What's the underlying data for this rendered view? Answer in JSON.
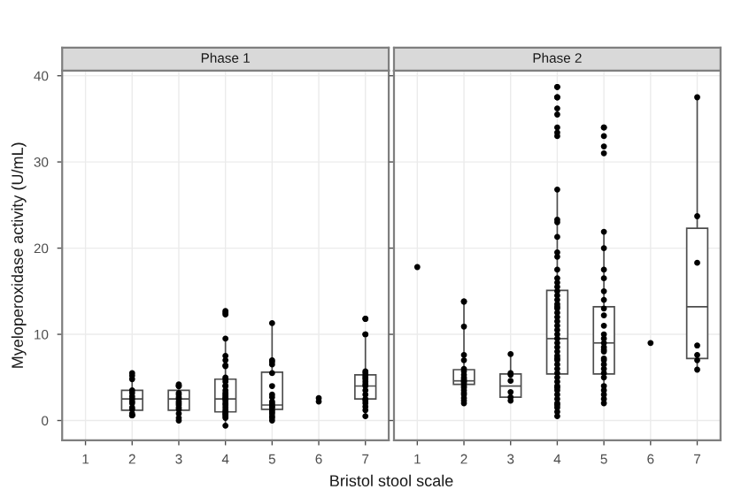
{
  "chart_data": [
    {
      "type": "box",
      "title": "Phase 1",
      "xlabel": "Bristol stool scale",
      "ylabel": "Myeloperoxidase activity (U/mL)",
      "categories": [
        "1",
        "2",
        "3",
        "4",
        "5",
        "6",
        "7"
      ],
      "boxes": [
        null,
        {
          "low": 0.5,
          "q1": 1.2,
          "median": 2.5,
          "q3": 3.5,
          "high": 5.5
        },
        {
          "low": 0.0,
          "q1": 1.2,
          "median": 2.5,
          "q3": 3.5,
          "high": 4.2
        },
        {
          "low": -0.6,
          "q1": 1.0,
          "median": 2.5,
          "q3": 4.8,
          "high": 9.5
        },
        {
          "low": 0.0,
          "q1": 1.3,
          "median": 1.8,
          "q3": 5.6,
          "high": 11.3
        },
        null,
        {
          "low": 0.5,
          "q1": 2.5,
          "median": 4.0,
          "q3": 5.3,
          "high": 9.5
        }
      ],
      "series": [
        {
          "type": "scatter",
          "color": "#000000",
          "x": [
            "2",
            "2",
            "2",
            "2",
            "2",
            "2",
            "2",
            "2",
            "2",
            "2",
            "2",
            "2",
            "2",
            "2",
            "2",
            "3",
            "3",
            "3",
            "3",
            "3",
            "3",
            "3",
            "3",
            "3",
            "3",
            "3",
            "3",
            "3",
            "3",
            "3",
            "4",
            "4",
            "4",
            "4",
            "4",
            "4",
            "4",
            "4",
            "4",
            "4",
            "4",
            "4",
            "4",
            "4",
            "4",
            "4",
            "4",
            "4",
            "4",
            "4",
            "4",
            "4",
            "4",
            "4",
            "4",
            "4",
            "4",
            "4",
            "4",
            "4",
            "5",
            "5",
            "5",
            "5",
            "5",
            "5",
            "5",
            "5",
            "5",
            "5",
            "5",
            "5",
            "5",
            "5",
            "5",
            "5",
            "5",
            "5",
            "5",
            "6",
            "6",
            "7",
            "7",
            "7",
            "7",
            "7",
            "7",
            "7",
            "7",
            "7",
            "7",
            "7",
            "7",
            "7",
            "7",
            "7",
            "7",
            "7",
            "7",
            "7",
            "7"
          ],
          "values": [
            5.2,
            4.8,
            3.5,
            3.2,
            2.8,
            2.5,
            1.5,
            1.3,
            0.6,
            0.6,
            0.8,
            2.2,
            5.5,
            2.0,
            0.6,
            4.2,
            4.0,
            3.2,
            3.0,
            2.7,
            2.5,
            2.2,
            2.0,
            1.5,
            1.3,
            0.8,
            0.3,
            0.0,
            4.0,
            1.8,
            12.7,
            12.5,
            12.3,
            9.5,
            7.5,
            7.0,
            6.3,
            5.0,
            4.8,
            4.5,
            4.0,
            3.5,
            3.2,
            3.0,
            2.8,
            2.5,
            2.3,
            2.0,
            1.8,
            1.5,
            1.2,
            1.0,
            0.7,
            0.5,
            0.3,
            -0.6,
            6.4,
            4.0,
            2.6,
            0.8,
            11.3,
            7.0,
            6.8,
            6.5,
            5.5,
            4.0,
            3.0,
            2.0,
            1.8,
            1.6,
            1.5,
            1.2,
            1.0,
            0.8,
            0.5,
            0.3,
            0.0,
            2.7,
            2.2,
            2.6,
            2.2,
            11.8,
            11.8,
            10.0,
            10.0,
            5.7,
            5.5,
            5.2,
            5.0,
            4.8,
            4.5,
            4.2,
            4.0,
            3.5,
            3.0,
            2.5,
            2.0,
            1.6,
            1.2,
            0.5,
            2.3
          ]
        }
      ],
      "ylim": [
        -2.3,
        40.6
      ],
      "yticks": [
        0,
        10,
        20,
        30,
        40
      ],
      "grid": true
    },
    {
      "type": "box",
      "title": "Phase 2",
      "categories": [
        "1",
        "2",
        "3",
        "4",
        "5",
        "6",
        "7"
      ],
      "boxes": [
        null,
        {
          "low": 2.0,
          "q1": 4.2,
          "median": 4.6,
          "q3": 5.9,
          "high": 13.8
        },
        {
          "low": 2.5,
          "q1": 2.7,
          "median": 4.0,
          "q3": 5.4,
          "high": 7.7
        },
        {
          "low": 0.8,
          "q1": 5.4,
          "median": 9.5,
          "q3": 15.1,
          "high": 27.0
        },
        {
          "low": 2.5,
          "q1": 5.4,
          "median": 9.0,
          "q3": 13.2,
          "high": 21.9
        },
        null,
        {
          "low": 5.9,
          "q1": 7.2,
          "median": 13.2,
          "q3": 22.3,
          "high": 37.5
        }
      ],
      "series": [
        {
          "type": "scatter",
          "color": "#000000",
          "x": [
            "1",
            "2",
            "2",
            "2",
            "2",
            "2",
            "2",
            "2",
            "2",
            "2",
            "2",
            "2",
            "2",
            "2",
            "2",
            "2",
            "2",
            "2",
            "2",
            "2",
            "2",
            "2",
            "3",
            "3",
            "3",
            "3",
            "3",
            "3",
            "3",
            "4",
            "4",
            "4",
            "4",
            "4",
            "4",
            "4",
            "4",
            "4",
            "4",
            "4",
            "4",
            "4",
            "4",
            "4",
            "4",
            "4",
            "4",
            "4",
            "4",
            "4",
            "4",
            "4",
            "4",
            "4",
            "4",
            "4",
            "4",
            "4",
            "4",
            "4",
            "4",
            "4",
            "4",
            "4",
            "4",
            "4",
            "4",
            "4",
            "4",
            "4",
            "4",
            "4",
            "4",
            "4",
            "4",
            "4",
            "4",
            "4",
            "4",
            "4",
            "4",
            "4",
            "5",
            "5",
            "5",
            "5",
            "5",
            "5",
            "5",
            "5",
            "5",
            "5",
            "5",
            "5",
            "5",
            "5",
            "5",
            "5",
            "5",
            "5",
            "5",
            "5",
            "5",
            "5",
            "5",
            "5",
            "5",
            "5",
            "5",
            "5",
            "5",
            "5",
            "5",
            "6",
            "7",
            "7",
            "7",
            "7",
            "7",
            "7",
            "7"
          ],
          "values": [
            17.8,
            13.8,
            13.8,
            10.9,
            7.6,
            6.0,
            5.3,
            5.0,
            4.8,
            4.6,
            4.5,
            4.3,
            4.0,
            3.8,
            3.5,
            3.2,
            3.0,
            2.6,
            2.3,
            2.0,
            5.7,
            7.0,
            7.7,
            5.5,
            5.3,
            4.6,
            3.3,
            2.7,
            2.3,
            38.7,
            38.7,
            37.5,
            37.5,
            36.2,
            35.5,
            34.0,
            33.4,
            33.0,
            26.8,
            23.0,
            21.3,
            19.5,
            17.5,
            16.5,
            15.5,
            15.0,
            14.5,
            14.0,
            13.5,
            13.0,
            12.5,
            12.0,
            11.5,
            11.0,
            10.5,
            10.0,
            9.5,
            9.0,
            8.5,
            8.0,
            7.5,
            7.0,
            6.5,
            6.0,
            5.5,
            5.0,
            4.5,
            4.0,
            3.5,
            3.0,
            2.5,
            2.0,
            1.5,
            1.0,
            0.5,
            23.3,
            19.0,
            16.0,
            13.2,
            7.2,
            3.8,
            1.8,
            34.0,
            34.0,
            33.0,
            31.8,
            31.0,
            21.9,
            20.0,
            17.5,
            16.5,
            15.0,
            14.0,
            13.0,
            12.2,
            11.0,
            10.0,
            9.5,
            9.0,
            8.5,
            8.0,
            7.0,
            6.5,
            6.0,
            5.5,
            5.0,
            4.0,
            3.5,
            3.0,
            2.5,
            2.0,
            8.2,
            7.2,
            9.0,
            37.5,
            23.7,
            18.3,
            8.7,
            7.6,
            7.0,
            5.9
          ]
        }
      ],
      "ylim": [
        -2.3,
        40.6
      ],
      "yticks": [
        0,
        10,
        20,
        30,
        40
      ],
      "grid": true,
      "tick_labels": "x"
    }
  ]
}
